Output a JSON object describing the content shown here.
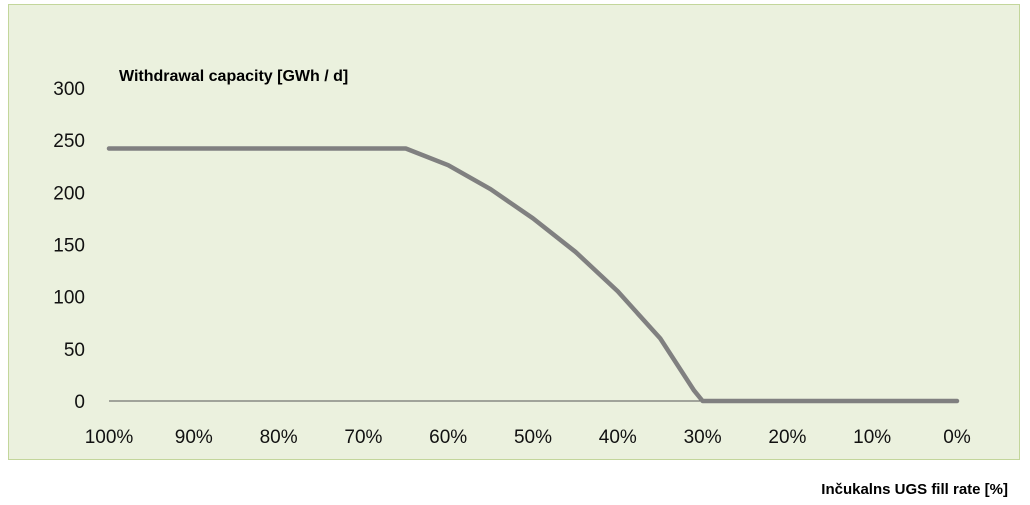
{
  "chart_data": {
    "type": "line",
    "ylabel": "Withdrawal capacity [GWh / d]",
    "xlabel": "Inčukalns UGS fill rate [%]",
    "x_tick_labels": [
      "100%",
      "90%",
      "80%",
      "70%",
      "60%",
      "50%",
      "40%",
      "30%",
      "20%",
      "10%",
      "0%"
    ],
    "x_ticks": [
      100,
      90,
      80,
      70,
      60,
      50,
      40,
      30,
      20,
      10,
      0
    ],
    "y_tick_labels": [
      "0",
      "50",
      "100",
      "150",
      "200",
      "250",
      "300"
    ],
    "y_ticks": [
      0,
      50,
      100,
      150,
      200,
      250,
      300
    ],
    "xlim": [
      100,
      0
    ],
    "ylim": [
      0,
      300
    ],
    "grid": false,
    "series": [
      {
        "color": "#808080",
        "points": [
          {
            "x": 100,
            "y": 242
          },
          {
            "x": 90,
            "y": 242
          },
          {
            "x": 80,
            "y": 242
          },
          {
            "x": 70,
            "y": 242
          },
          {
            "x": 65,
            "y": 242
          },
          {
            "x": 60,
            "y": 226
          },
          {
            "x": 55,
            "y": 203
          },
          {
            "x": 50,
            "y": 175
          },
          {
            "x": 45,
            "y": 143
          },
          {
            "x": 40,
            "y": 105
          },
          {
            "x": 35,
            "y": 60
          },
          {
            "x": 31,
            "y": 10
          },
          {
            "x": 30,
            "y": 0
          },
          {
            "x": 20,
            "y": 0
          },
          {
            "x": 10,
            "y": 0
          },
          {
            "x": 0,
            "y": 0
          }
        ]
      }
    ]
  }
}
